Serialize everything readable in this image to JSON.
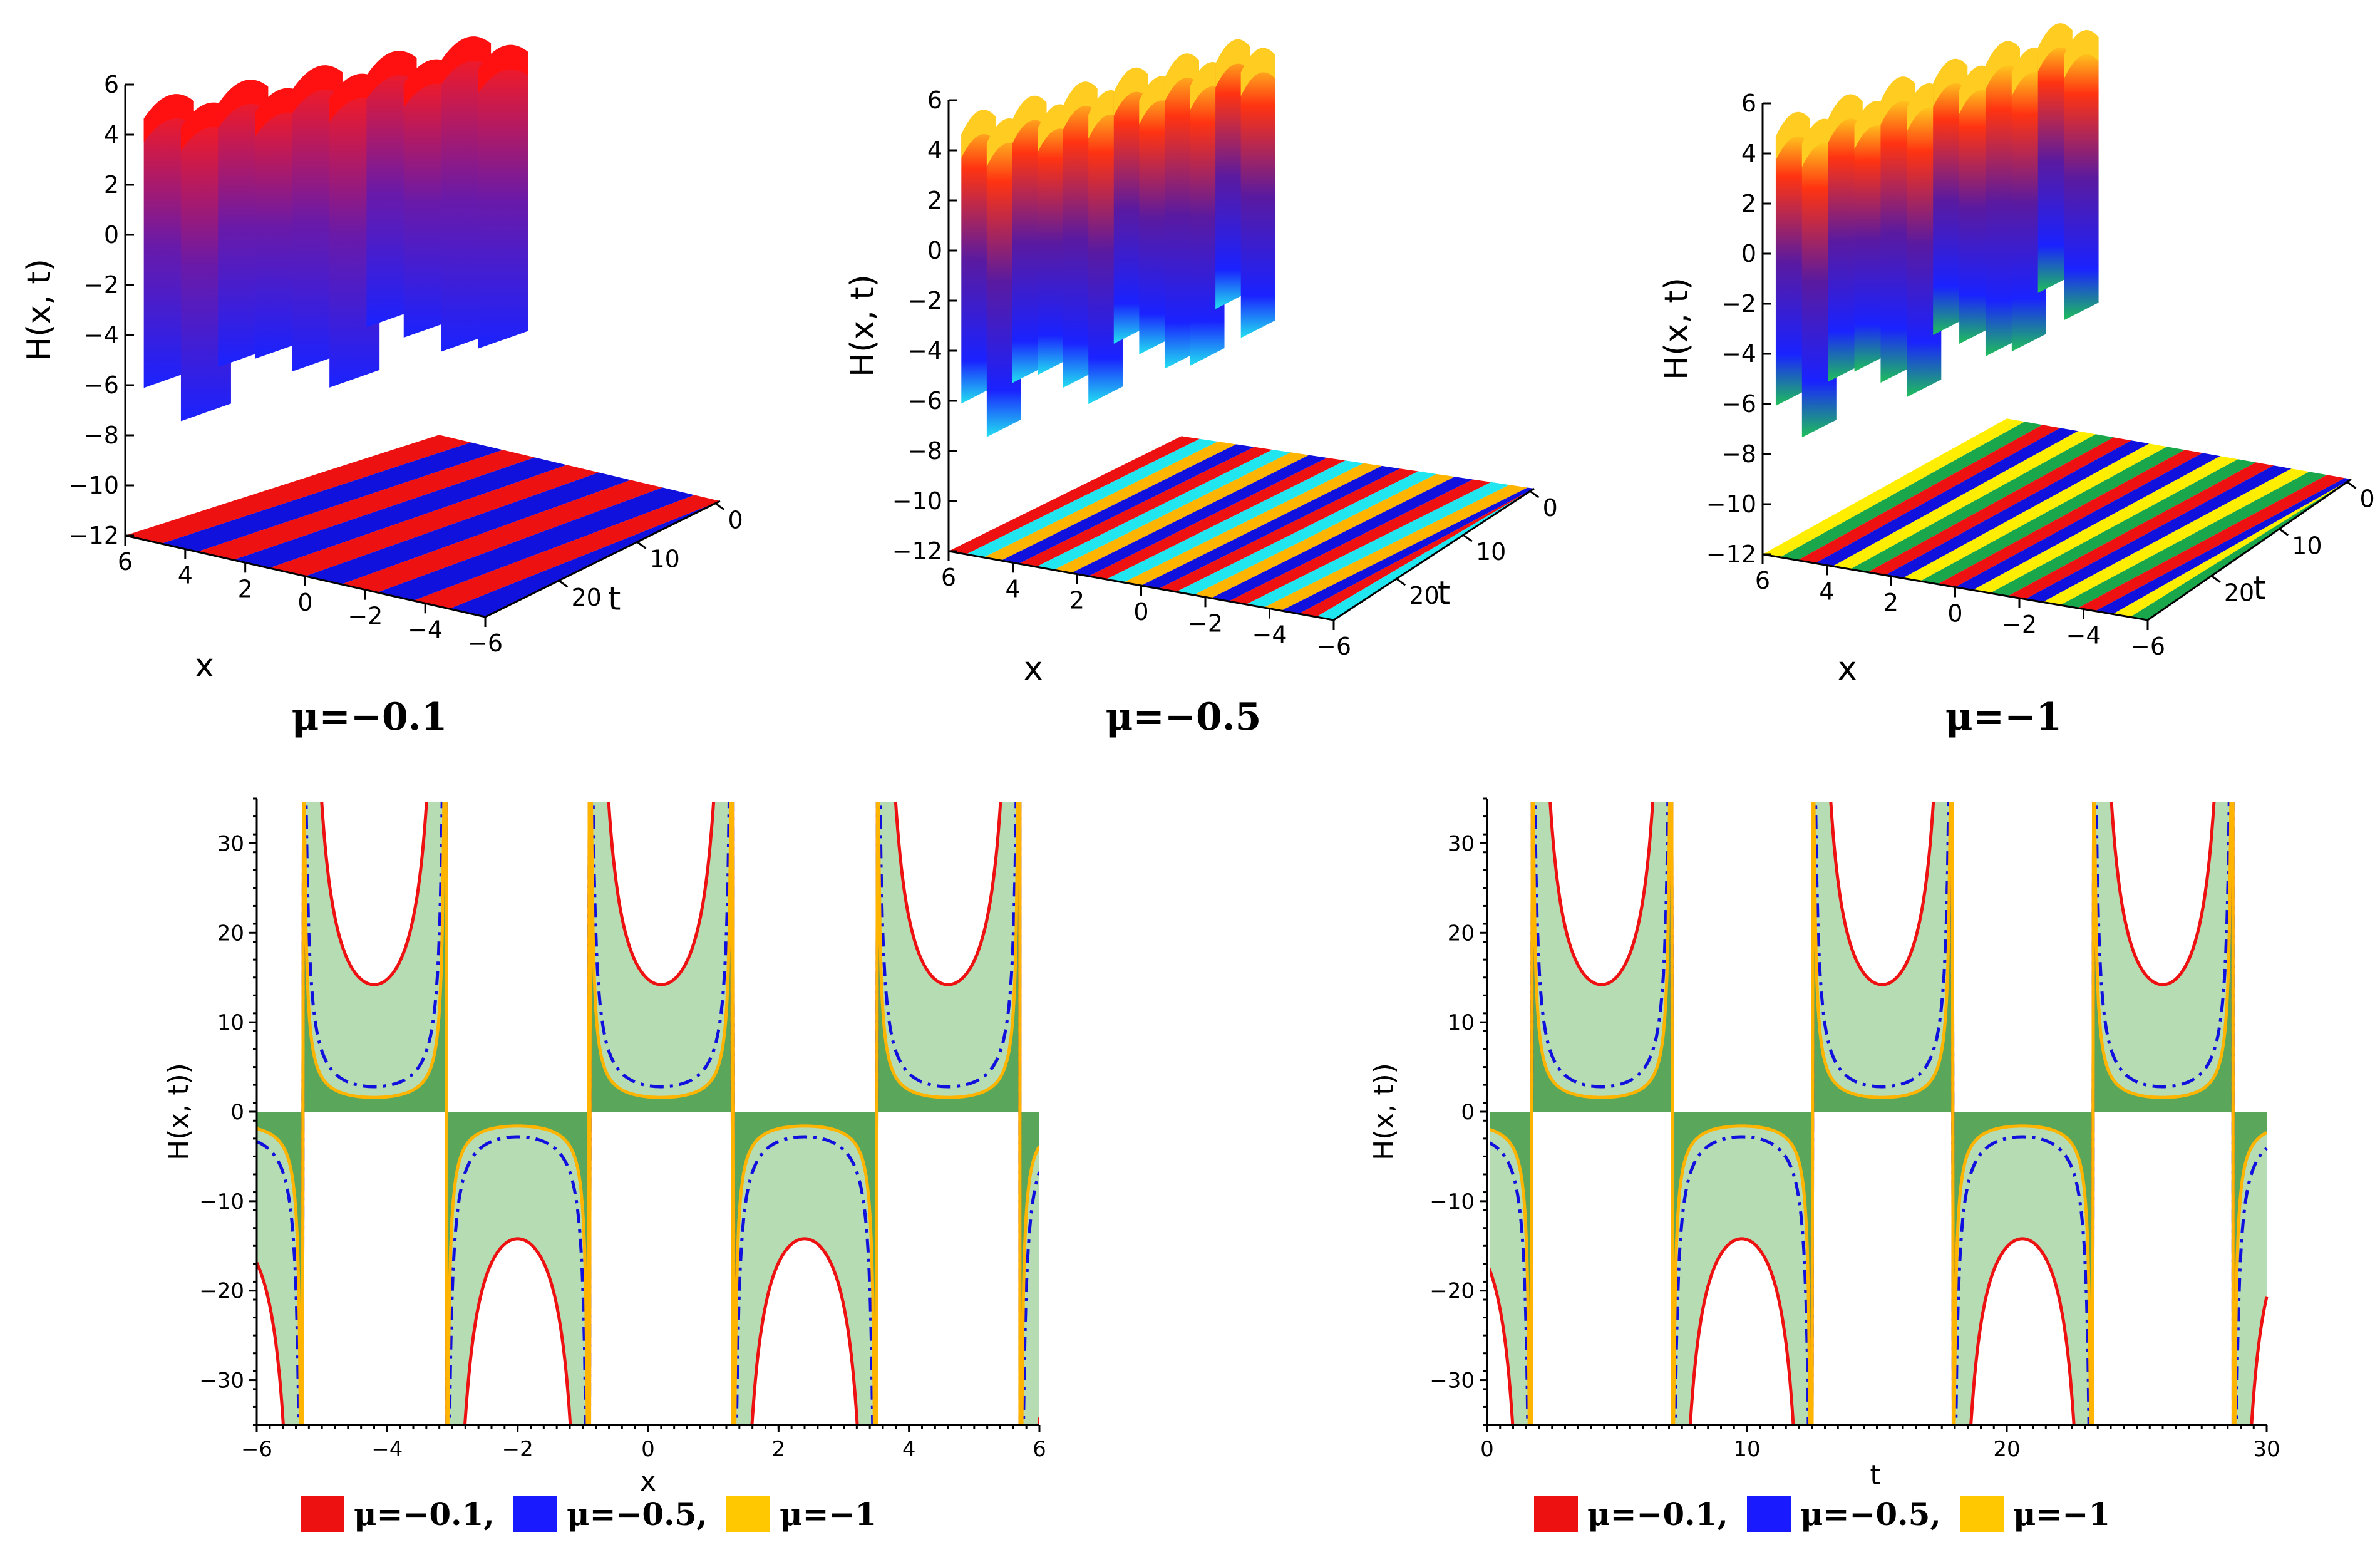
{
  "colors": {
    "red": "#ee1111",
    "blue": "#1111dd",
    "orange": "#ffb400",
    "darkGreen": "#5aa65a",
    "lightGreen": "#b6dcb4",
    "legend_blue": "#1a1aff",
    "legend_yellow": "#ffc800",
    "cyan": "#21e6f0",
    "yellow": "#ffee00",
    "green": "#1aa64b"
  },
  "panels3d": [
    {
      "caption": "μ=−0.1",
      "zlabel": "H(x, t)",
      "xlabel": "x",
      "tlabel": "t",
      "zticks": [
        "6",
        "4",
        "2",
        "0",
        "−2",
        "−4",
        "−6",
        "−8",
        "−10",
        "−12"
      ],
      "xticks": [
        "6",
        "4",
        "2",
        "0",
        "−2",
        "−4",
        "−6"
      ],
      "tticks": [
        "0",
        "10",
        "20"
      ]
    },
    {
      "caption": "μ=−0.5",
      "zlabel": "H(x, t)",
      "xlabel": "x",
      "tlabel": "t",
      "zticks": [
        "6",
        "4",
        "2",
        "0",
        "−2",
        "−4",
        "−6",
        "−8",
        "−10",
        "−12"
      ],
      "xticks": [
        "6",
        "4",
        "2",
        "0",
        "−2",
        "−4",
        "−6"
      ],
      "tticks": [
        "0",
        "10",
        "20"
      ]
    },
    {
      "caption": "μ=−1",
      "zlabel": "H(x, t)",
      "xlabel": "x",
      "tlabel": "t",
      "zticks": [
        "6",
        "4",
        "2",
        "0",
        "−2",
        "−4",
        "−6",
        "−8",
        "−10",
        "−12"
      ],
      "xticks": [
        "6",
        "4",
        "2",
        "0",
        "−2",
        "−4",
        "−6"
      ],
      "tticks": [
        "0",
        "10",
        "20"
      ]
    }
  ],
  "chart_data": [
    {
      "type": "line",
      "title": "",
      "xlabel": "x",
      "ylabel": "H(x, t))",
      "xlim": [
        -6,
        6
      ],
      "ylim": [
        -35,
        35
      ],
      "xticks": [
        -6,
        -4,
        -2,
        0,
        2,
        4,
        6
      ],
      "yticks": [
        -30,
        -20,
        -10,
        0,
        10,
        20,
        30
      ],
      "xtick_labels": [
        "−6",
        "−4",
        "−2",
        "0",
        "2",
        "4",
        "6"
      ],
      "ytick_labels": [
        "−30",
        "−20",
        "−10",
        "0",
        "10",
        "20",
        "30"
      ],
      "period": 4.4,
      "poles": [
        -5.3,
        -3.1,
        -0.9,
        1.3,
        3.5,
        5.7
      ],
      "series": [
        {
          "name": "μ=−0.1",
          "style": "solid",
          "extremum_magnitude": 14.2
        },
        {
          "name": "μ=−0.5",
          "style": "dashdot",
          "extremum_magnitude": 2.8
        },
        {
          "name": "μ=−1",
          "style": "solid",
          "extremum_magnitude": 1.6
        }
      ],
      "legend": [
        "μ=−0.1,",
        "μ=−0.5,",
        "μ=−1"
      ]
    },
    {
      "type": "line",
      "title": "",
      "xlabel": "t",
      "ylabel": "H(x, t))",
      "xlim": [
        0,
        30
      ],
      "ylim": [
        -35,
        35
      ],
      "xticks": [
        0,
        10,
        20,
        30
      ],
      "yticks": [
        -30,
        -20,
        -10,
        0,
        10,
        20,
        30
      ],
      "xtick_labels": [
        "0",
        "10",
        "20",
        "30"
      ],
      "ytick_labels": [
        "−30",
        "−20",
        "−10",
        "0",
        "10",
        "20",
        "30"
      ],
      "period": 10.8,
      "poles": [
        1.7,
        7.1,
        12.5,
        17.9,
        23.3,
        28.7
      ],
      "series": [
        {
          "name": "μ=−0.1",
          "style": "solid",
          "extremum_magnitude": 14.2
        },
        {
          "name": "μ=−0.5",
          "style": "dashdot",
          "extremum_magnitude": 2.8
        },
        {
          "name": "μ=−1",
          "style": "solid",
          "extremum_magnitude": 1.6
        }
      ],
      "legend": [
        "μ=−0.1,",
        "μ=−0.5,",
        "μ=−1"
      ]
    }
  ]
}
